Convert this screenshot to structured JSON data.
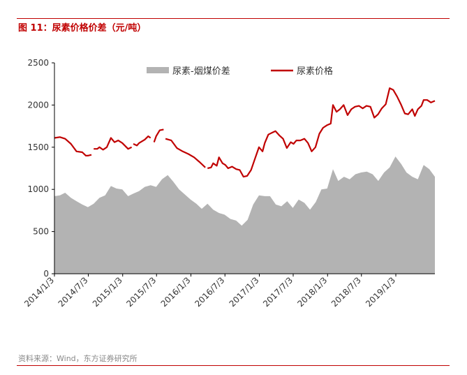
{
  "header": {
    "title": "图 11：尿素价格价差（元/吨）"
  },
  "footer": {
    "source": "资料来源：Wind，东方证券研究所"
  },
  "colors": {
    "accent": "#c00000",
    "area": "#b3b3b3",
    "line": "#c00000"
  },
  "chart_data": {
    "type": "line",
    "title": "",
    "xlabel": "",
    "ylabel": "",
    "ylim": [
      0,
      2500
    ],
    "yticks": [
      0,
      500,
      1000,
      1500,
      2000,
      2500
    ],
    "xlim": [
      "2014-01-03",
      "2019-07-31"
    ],
    "xticks": [
      "2014/1/3",
      "2014/7/3",
      "2015/1/3",
      "2015/7/3",
      "2016/1/3",
      "2016/7/3",
      "2017/1/3",
      "2017/7/3",
      "2018/1/3",
      "2018/7/3",
      "2019/1/3"
    ],
    "legend": "top-center",
    "series": [
      {
        "name": "尿素-烟煤价差",
        "type": "area",
        "color": "#b3b3b3",
        "points": [
          [
            "2014-01-03",
            920
          ],
          [
            "2014-02-01",
            930
          ],
          [
            "2014-03-01",
            960
          ],
          [
            "2014-04-01",
            900
          ],
          [
            "2014-05-01",
            860
          ],
          [
            "2014-06-01",
            820
          ],
          [
            "2014-07-01",
            790
          ],
          [
            "2014-08-01",
            830
          ],
          [
            "2014-09-01",
            900
          ],
          [
            "2014-10-01",
            930
          ],
          [
            "2014-11-01",
            1040
          ],
          [
            "2014-12-01",
            1010
          ],
          [
            "2015-01-01",
            1000
          ],
          [
            "2015-02-01",
            920
          ],
          [
            "2015-03-01",
            950
          ],
          [
            "2015-04-01",
            980
          ],
          [
            "2015-05-01",
            1030
          ],
          [
            "2015-06-01",
            1050
          ],
          [
            "2015-07-01",
            1030
          ],
          [
            "2015-08-01",
            1120
          ],
          [
            "2015-09-01",
            1170
          ],
          [
            "2015-10-01",
            1090
          ],
          [
            "2015-11-01",
            1000
          ],
          [
            "2015-12-01",
            940
          ],
          [
            "2016-01-01",
            880
          ],
          [
            "2016-02-01",
            830
          ],
          [
            "2016-03-01",
            770
          ],
          [
            "2016-04-01",
            830
          ],
          [
            "2016-05-01",
            760
          ],
          [
            "2016-06-01",
            720
          ],
          [
            "2016-07-01",
            700
          ],
          [
            "2016-08-01",
            650
          ],
          [
            "2016-09-01",
            630
          ],
          [
            "2016-10-01",
            570
          ],
          [
            "2016-11-01",
            640
          ],
          [
            "2016-12-01",
            820
          ],
          [
            "2017-01-01",
            930
          ],
          [
            "2017-02-01",
            920
          ],
          [
            "2017-03-01",
            920
          ],
          [
            "2017-04-01",
            820
          ],
          [
            "2017-05-01",
            800
          ],
          [
            "2017-06-01",
            860
          ],
          [
            "2017-07-01",
            780
          ],
          [
            "2017-08-01",
            880
          ],
          [
            "2017-09-01",
            840
          ],
          [
            "2017-10-01",
            760
          ],
          [
            "2017-11-01",
            850
          ],
          [
            "2017-12-01",
            1000
          ],
          [
            "2018-01-01",
            1010
          ],
          [
            "2018-02-01",
            1240
          ],
          [
            "2018-03-01",
            1100
          ],
          [
            "2018-04-01",
            1150
          ],
          [
            "2018-05-01",
            1120
          ],
          [
            "2018-06-01",
            1180
          ],
          [
            "2018-07-01",
            1200
          ],
          [
            "2018-08-01",
            1210
          ],
          [
            "2018-09-01",
            1180
          ],
          [
            "2018-10-01",
            1100
          ],
          [
            "2018-11-01",
            1200
          ],
          [
            "2018-12-01",
            1260
          ],
          [
            "2019-01-01",
            1390
          ],
          [
            "2019-02-01",
            1300
          ],
          [
            "2019-03-01",
            1200
          ],
          [
            "2019-04-01",
            1150
          ],
          [
            "2019-05-01",
            1120
          ],
          [
            "2019-06-01",
            1290
          ],
          [
            "2019-07-01",
            1240
          ],
          [
            "2019-07-31",
            1150
          ]
        ]
      },
      {
        "name": "尿素价格",
        "type": "line",
        "color": "#c00000",
        "segments": [
          [
            [
              "2014-01-03",
              1610
            ],
            [
              "2014-02-01",
              1620
            ],
            [
              "2014-03-01",
              1600
            ],
            [
              "2014-04-01",
              1540
            ],
            [
              "2014-05-01",
              1450
            ],
            [
              "2014-06-01",
              1440
            ],
            [
              "2014-06-20",
              1400
            ],
            [
              "2014-07-01",
              1400
            ],
            [
              "2014-07-20",
              1410
            ]
          ],
          [
            [
              "2014-08-01",
              1480
            ],
            [
              "2014-08-20",
              1480
            ],
            [
              "2014-09-01",
              1500
            ],
            [
              "2014-09-20",
              1470
            ],
            [
              "2014-10-10",
              1500
            ],
            [
              "2014-11-01",
              1610
            ],
            [
              "2014-11-20",
              1560
            ],
            [
              "2014-12-10",
              1580
            ],
            [
              "2015-01-01",
              1550
            ],
            [
              "2015-02-01",
              1480
            ],
            [
              "2015-02-20",
              1500
            ]
          ],
          [
            [
              "2015-03-01",
              1540
            ],
            [
              "2015-03-20",
              1520
            ],
            [
              "2015-04-01",
              1550
            ],
            [
              "2015-05-01",
              1590
            ],
            [
              "2015-05-20",
              1630
            ],
            [
              "2015-06-01",
              1610
            ]
          ],
          [
            [
              "2015-06-20",
              1560
            ],
            [
              "2015-07-01",
              1630
            ],
            [
              "2015-07-20",
              1700
            ],
            [
              "2015-08-10",
              1710
            ]
          ],
          [
            [
              "2015-08-20",
              1600
            ],
            [
              "2015-09-20",
              1580
            ],
            [
              "2015-10-20",
              1490
            ],
            [
              "2015-11-20",
              1450
            ],
            [
              "2015-12-20",
              1420
            ],
            [
              "2016-01-20",
              1380
            ],
            [
              "2016-02-20",
              1320
            ],
            [
              "2016-03-20",
              1260
            ]
          ],
          [
            [
              "2016-04-01",
              1250
            ],
            [
              "2016-04-20",
              1260
            ],
            [
              "2016-05-01",
              1310
            ],
            [
              "2016-05-20",
              1280
            ],
            [
              "2016-06-01",
              1380
            ],
            [
              "2016-06-20",
              1310
            ],
            [
              "2016-07-05",
              1290
            ],
            [
              "2016-07-20",
              1250
            ],
            [
              "2016-08-10",
              1270
            ],
            [
              "2016-09-01",
              1240
            ],
            [
              "2016-09-20",
              1230
            ],
            [
              "2016-10-10",
              1150
            ],
            [
              "2016-10-30",
              1160
            ],
            [
              "2016-11-20",
              1230
            ],
            [
              "2016-12-10",
              1360
            ],
            [
              "2017-01-01",
              1500
            ],
            [
              "2017-01-20",
              1450
            ],
            [
              "2017-02-01",
              1550
            ],
            [
              "2017-02-20",
              1650
            ],
            [
              "2017-03-10",
              1670
            ],
            [
              "2017-03-30",
              1690
            ],
            [
              "2017-04-20",
              1640
            ],
            [
              "2017-05-10",
              1600
            ],
            [
              "2017-05-30",
              1490
            ],
            [
              "2017-06-20",
              1560
            ],
            [
              "2017-07-05",
              1540
            ],
            [
              "2017-07-20",
              1580
            ],
            [
              "2017-08-10",
              1580
            ],
            [
              "2017-09-01",
              1600
            ],
            [
              "2017-09-20",
              1550
            ],
            [
              "2017-10-10",
              1450
            ],
            [
              "2017-10-30",
              1500
            ],
            [
              "2017-11-20",
              1660
            ],
            [
              "2017-12-10",
              1730
            ],
            [
              "2017-12-30",
              1760
            ],
            [
              "2018-01-20",
              1780
            ],
            [
              "2018-02-01",
              2000
            ],
            [
              "2018-02-20",
              1920
            ],
            [
              "2018-03-10",
              1950
            ],
            [
              "2018-03-30",
              2000
            ],
            [
              "2018-04-20",
              1880
            ],
            [
              "2018-05-10",
              1950
            ],
            [
              "2018-05-30",
              1980
            ],
            [
              "2018-06-20",
              1990
            ],
            [
              "2018-07-10",
              1960
            ],
            [
              "2018-07-30",
              1990
            ],
            [
              "2018-08-20",
              1980
            ],
            [
              "2018-09-10",
              1850
            ],
            [
              "2018-09-30",
              1890
            ],
            [
              "2018-10-20",
              1960
            ],
            [
              "2018-11-10",
              2010
            ],
            [
              "2018-12-01",
              2200
            ],
            [
              "2018-12-20",
              2180
            ],
            [
              "2019-01-10",
              2100
            ],
            [
              "2019-02-01",
              2000
            ],
            [
              "2019-02-20",
              1900
            ],
            [
              "2019-03-10",
              1890
            ],
            [
              "2019-04-01",
              1950
            ],
            [
              "2019-04-15",
              1870
            ],
            [
              "2019-05-01",
              1950
            ],
            [
              "2019-05-20",
              1990
            ],
            [
              "2019-06-01",
              2060
            ],
            [
              "2019-06-20",
              2060
            ],
            [
              "2019-07-10",
              2030
            ],
            [
              "2019-07-31",
              2050
            ]
          ]
        ]
      }
    ]
  }
}
